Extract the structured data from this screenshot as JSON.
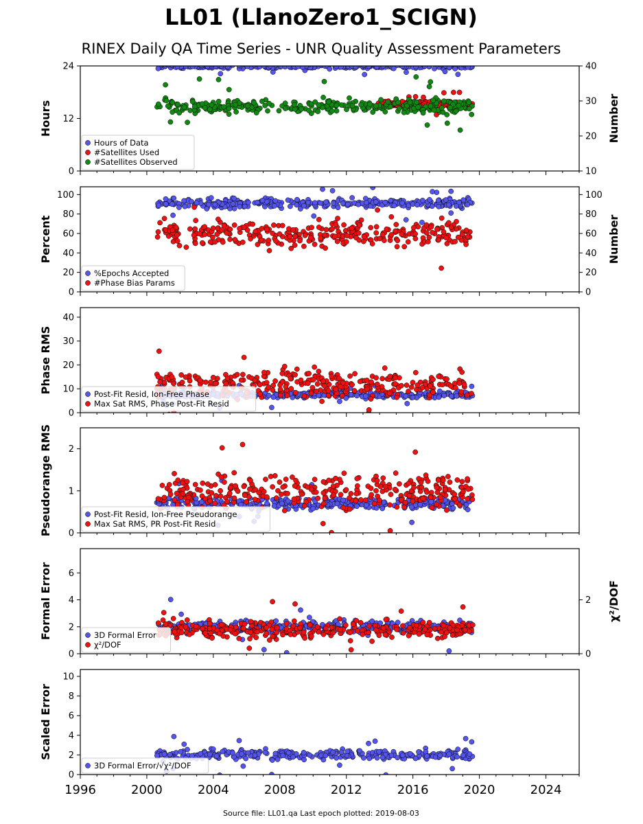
{
  "figure": {
    "title": "LL01 (LlanoZero1_SCIGN)",
    "subtitle": "RINEX Daily QA Time Series - UNR Quality Assessment Parameters",
    "footer": "Source file: LL01.qa Last epoch plotted: 2019-08-03"
  },
  "colors": {
    "blue": "#5555ee",
    "red": "#ee1111",
    "green": "#118811",
    "darkred": "#660000"
  },
  "chart_data": [
    {
      "type": "scatter",
      "id": "hours",
      "ylabel": "Hours",
      "ylim": [
        0,
        24
      ],
      "yticks": [
        0,
        12,
        24
      ],
      "y2label": "Number",
      "y2lim": [
        10,
        40
      ],
      "y2ticks": [
        10,
        20,
        30,
        40
      ],
      "xlim": [
        1996,
        2026
      ],
      "legend": "bottom-left",
      "series": [
        {
          "name": "Hours of Data",
          "axis": "left",
          "color": "blue",
          "typical": 23.9,
          "spread": 0.3,
          "range": [
            2000.6,
            2019.6
          ]
        },
        {
          "name": "#Satellites Used",
          "axis": "right",
          "color": "red",
          "typical": 29,
          "spread": 0.5,
          "range": [
            2013.9,
            2019.6
          ]
        },
        {
          "name": "#Satellites Observed",
          "axis": "right",
          "color": "green",
          "typical": 28.5,
          "spread": 1.2,
          "range": [
            2000.6,
            2019.6
          ]
        }
      ]
    },
    {
      "type": "scatter",
      "id": "percent",
      "ylabel": "Percent",
      "ylim": [
        0,
        108
      ],
      "yticks": [
        0,
        20,
        40,
        60,
        80,
        100
      ],
      "y2label": "Number",
      "y2lim": [
        0,
        108
      ],
      "y2ticks": [
        0,
        20,
        40,
        60,
        80,
        100
      ],
      "xlim": [
        1996,
        2026
      ],
      "legend": "bottom-left",
      "series": [
        {
          "name": "%Epochs Accepted",
          "axis": "left",
          "color": "blue",
          "typical": 91,
          "spread": 3,
          "range": [
            2000.6,
            2019.6
          ]
        },
        {
          "name": "#Phase Bias Params",
          "axis": "right",
          "color": "red",
          "typical": 60,
          "spread": 8,
          "range": [
            2000.6,
            2019.6
          ]
        }
      ]
    },
    {
      "type": "scatter",
      "id": "phase",
      "ylabel": "Phase RMS",
      "ylim": [
        0,
        44
      ],
      "yticks": [
        0,
        10,
        20,
        30,
        40
      ],
      "xlim": [
        1996,
        2026
      ],
      "legend": "bottom-left",
      "series": [
        {
          "name": "Post-Fit Resid, Ion-Free Phase",
          "axis": "left",
          "color": "blue",
          "typical": 7.5,
          "spread": 0.8,
          "range": [
            2000.6,
            2019.6
          ]
        },
        {
          "name": "Max Sat RMS, Phase Post-Fit Resid",
          "axis": "left",
          "color": "red",
          "typical": 12,
          "spread": 3.5,
          "range": [
            2000.6,
            2019.6
          ]
        }
      ]
    },
    {
      "type": "scatter",
      "id": "pseudorange",
      "ylabel": "Pseudorange RMS",
      "ylim": [
        0,
        2.5
      ],
      "yticks": [
        0,
        1,
        2
      ],
      "xlim": [
        1996,
        2026
      ],
      "legend": "bottom-left",
      "series": [
        {
          "name": "Post-Fit Resid, Ion-Free Pseudorange",
          "axis": "left",
          "color": "blue",
          "typical": 0.7,
          "spread": 0.08,
          "range": [
            2000.6,
            2019.6
          ]
        },
        {
          "name": "Max Sat RMS, PR Post-Fit Resid",
          "axis": "left",
          "color": "red",
          "typical": 1.0,
          "spread": 0.25,
          "range": [
            2000.6,
            2019.6
          ]
        }
      ]
    },
    {
      "type": "scatter",
      "id": "formal",
      "ylabel": "Formal Error",
      "ylim": [
        0,
        7.8
      ],
      "yticks": [
        0,
        2,
        4,
        6
      ],
      "y2label": "χ²/DOF",
      "y2lim": [
        0,
        3.9
      ],
      "y2ticks": [
        0,
        2
      ],
      "xlim": [
        1996,
        2026
      ],
      "legend": "bottom-left",
      "series": [
        {
          "name": "3D Formal Error",
          "axis": "left",
          "color": "blue",
          "typical": 2.0,
          "spread": 0.3,
          "range": [
            2000.6,
            2019.6
          ]
        },
        {
          "name": "χ²/DOF",
          "axis": "right",
          "color": "red",
          "typical": 0.9,
          "spread": 0.2,
          "range": [
            2000.6,
            2019.6
          ]
        }
      ]
    },
    {
      "type": "scatter",
      "id": "scaled",
      "ylabel": "Scaled Error",
      "ylim": [
        0,
        10.7
      ],
      "yticks": [
        0,
        2,
        4,
        6,
        8,
        10
      ],
      "xlim": [
        1996,
        2026
      ],
      "xticks": [
        1996,
        2000,
        2004,
        2008,
        2012,
        2016,
        2020,
        2024
      ],
      "legend": "bottom-left",
      "series": [
        {
          "name": "3D Formal Error/√χ²/DOF",
          "axis": "left",
          "color": "blue",
          "typical": 2.0,
          "spread": 0.3,
          "range": [
            2000.6,
            2019.6
          ]
        }
      ]
    }
  ]
}
